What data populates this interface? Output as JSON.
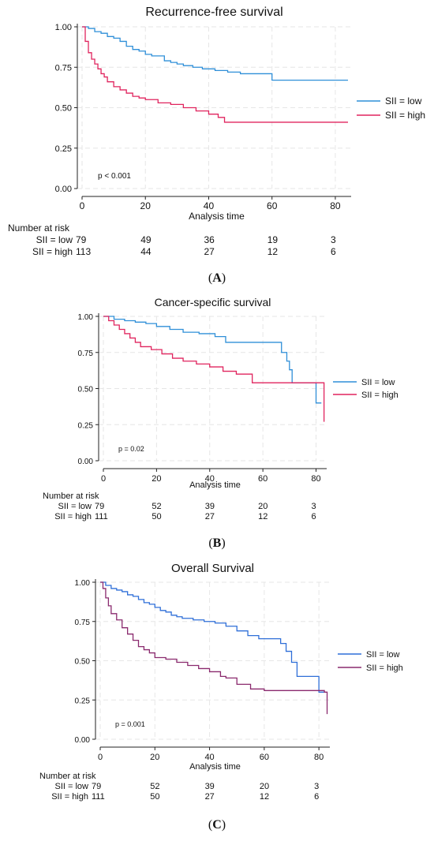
{
  "chart_data": [
    {
      "type": "line",
      "panel_label": "A",
      "title": "Recurrence-free survival",
      "xlabel": "Analysis time",
      "ylabel": "",
      "xlim": [
        0,
        85
      ],
      "ylim": [
        0,
        1
      ],
      "xticks": [
        "0",
        "20",
        "40",
        "60",
        "80"
      ],
      "yticks": [
        "0.00",
        "0.25",
        "0.50",
        "0.75",
        "1.00"
      ],
      "grid": true,
      "legend_position": "right",
      "annotation": "p  < 0.001",
      "series": [
        {
          "name": "SII = low",
          "color": "#2f8fd8",
          "x": [
            0,
            2,
            4,
            6,
            8,
            10,
            12,
            14,
            16,
            18,
            20,
            22,
            24,
            26,
            28,
            30,
            32,
            35,
            38,
            42,
            46,
            50,
            55,
            60,
            65,
            70,
            84
          ],
          "y": [
            1.0,
            0.99,
            0.97,
            0.96,
            0.94,
            0.93,
            0.91,
            0.88,
            0.86,
            0.85,
            0.83,
            0.82,
            0.82,
            0.79,
            0.78,
            0.77,
            0.76,
            0.75,
            0.74,
            0.73,
            0.72,
            0.71,
            0.71,
            0.67,
            0.67,
            0.67,
            0.67
          ]
        },
        {
          "name": "SII = high",
          "color": "#e0245e",
          "x": [
            0,
            1,
            2,
            3,
            4,
            5,
            6,
            7,
            8,
            10,
            12,
            14,
            16,
            18,
            20,
            24,
            28,
            32,
            36,
            40,
            43,
            45,
            50,
            60,
            70,
            84
          ],
          "y": [
            1.0,
            0.91,
            0.84,
            0.8,
            0.77,
            0.74,
            0.71,
            0.69,
            0.66,
            0.63,
            0.61,
            0.59,
            0.57,
            0.56,
            0.55,
            0.53,
            0.52,
            0.5,
            0.48,
            0.46,
            0.44,
            0.41,
            0.41,
            0.41,
            0.41,
            0.41
          ]
        }
      ],
      "risk_table": {
        "heading": "Number at risk",
        "times": [
          0,
          20,
          40,
          60,
          80
        ],
        "rows": [
          {
            "label": "SII = low",
            "values": [
              "79",
              "49",
              "36",
              "19",
              "3"
            ]
          },
          {
            "label": "SII = high",
            "values": [
              "113",
              "44",
              "27",
              "12",
              "6"
            ]
          }
        ]
      }
    },
    {
      "type": "line",
      "panel_label": "B",
      "title": "Cancer-specific survival",
      "xlabel": "Analysis time",
      "ylabel": "",
      "xlim": [
        0,
        84
      ],
      "ylim": [
        0,
        1
      ],
      "xticks": [
        "0",
        "20",
        "40",
        "60",
        "80"
      ],
      "yticks": [
        "0.00",
        "0.25",
        "0.50",
        "0.75",
        "1.00"
      ],
      "grid": true,
      "legend_position": "right",
      "annotation": "p  = 0.02",
      "series": [
        {
          "name": "SII = low",
          "color": "#2f8fd8",
          "x": [
            0,
            4,
            8,
            12,
            16,
            20,
            25,
            30,
            36,
            42,
            46,
            50,
            55,
            60,
            65,
            67,
            69,
            70,
            71,
            78,
            80,
            82
          ],
          "y": [
            1.0,
            0.98,
            0.97,
            0.96,
            0.95,
            0.93,
            0.91,
            0.89,
            0.88,
            0.86,
            0.82,
            0.82,
            0.82,
            0.82,
            0.82,
            0.75,
            0.69,
            0.63,
            0.54,
            0.54,
            0.4,
            0.4
          ]
        },
        {
          "name": "SII = high",
          "color": "#e0245e",
          "x": [
            0,
            2,
            4,
            6,
            8,
            10,
            12,
            14,
            18,
            22,
            26,
            30,
            35,
            40,
            45,
            50,
            56,
            60,
            65,
            70,
            80,
            82,
            83
          ],
          "y": [
            1.0,
            0.97,
            0.94,
            0.91,
            0.88,
            0.85,
            0.82,
            0.79,
            0.77,
            0.74,
            0.71,
            0.69,
            0.67,
            0.65,
            0.62,
            0.6,
            0.54,
            0.54,
            0.54,
            0.54,
            0.54,
            0.54,
            0.27
          ]
        }
      ],
      "risk_table": {
        "heading": "Number at risk",
        "times": [
          0,
          20,
          40,
          60,
          80
        ],
        "rows": [
          {
            "label": "SII = low",
            "values": [
              "79",
              "52",
              "39",
              "20",
              "3"
            ]
          },
          {
            "label": "SII = high",
            "values": [
              "111",
              "50",
              "27",
              "12",
              "6"
            ]
          }
        ]
      }
    },
    {
      "type": "line",
      "panel_label": "C",
      "title": "Overall Survival",
      "xlabel": "Analysis time",
      "ylabel": "",
      "xlim": [
        0,
        84
      ],
      "ylim": [
        0,
        1
      ],
      "xticks": [
        "0",
        "20",
        "40",
        "60",
        "80"
      ],
      "yticks": [
        "0.00",
        "0.25",
        "0.50",
        "0.75",
        "1.00"
      ],
      "grid": true,
      "legend_position": "right",
      "annotation": "p  = 0.001",
      "series": [
        {
          "name": "SII = low",
          "color": "#2f6fd8",
          "x": [
            0,
            2,
            4,
            6,
            8,
            10,
            12,
            14,
            16,
            18,
            20,
            22,
            24,
            26,
            28,
            30,
            34,
            38,
            42,
            46,
            50,
            54,
            58,
            62,
            66,
            68,
            70,
            72,
            80,
            82
          ],
          "y": [
            1.0,
            0.98,
            0.96,
            0.95,
            0.94,
            0.92,
            0.91,
            0.89,
            0.87,
            0.86,
            0.84,
            0.82,
            0.81,
            0.79,
            0.78,
            0.77,
            0.76,
            0.75,
            0.74,
            0.72,
            0.69,
            0.66,
            0.64,
            0.64,
            0.61,
            0.56,
            0.49,
            0.4,
            0.3,
            0.3
          ]
        },
        {
          "name": "SII = high",
          "color": "#8a2a6e",
          "x": [
            0,
            1,
            2,
            3,
            4,
            6,
            8,
            10,
            12,
            14,
            16,
            18,
            20,
            24,
            28,
            32,
            36,
            40,
            44,
            46,
            50,
            55,
            60,
            65,
            70,
            80,
            82,
            83
          ],
          "y": [
            1.0,
            0.96,
            0.9,
            0.85,
            0.8,
            0.76,
            0.71,
            0.67,
            0.63,
            0.59,
            0.57,
            0.55,
            0.52,
            0.51,
            0.49,
            0.47,
            0.45,
            0.43,
            0.4,
            0.39,
            0.35,
            0.32,
            0.31,
            0.31,
            0.31,
            0.31,
            0.3,
            0.16
          ]
        }
      ],
      "risk_table": {
        "heading": "Number at risk",
        "times": [
          0,
          20,
          40,
          60,
          80
        ],
        "rows": [
          {
            "label": "SII = low",
            "values": [
              "79",
              "52",
              "39",
              "20",
              "3"
            ]
          },
          {
            "label": "SII = high",
            "values": [
              "111",
              "50",
              "27",
              "12",
              "6"
            ]
          }
        ]
      }
    }
  ]
}
